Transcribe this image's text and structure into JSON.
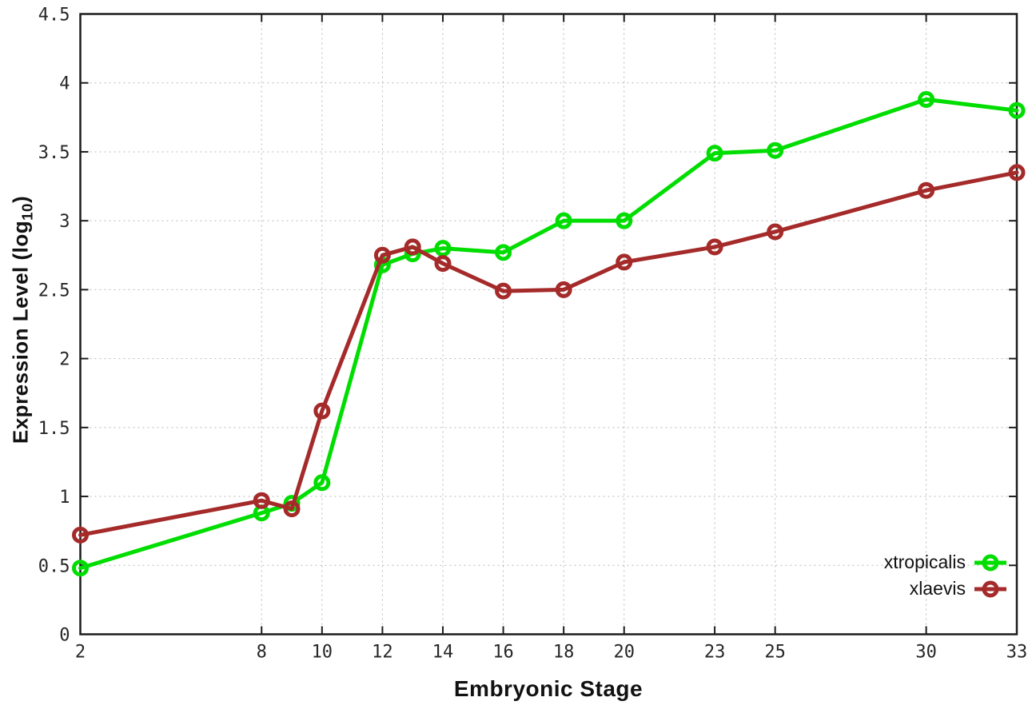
{
  "chart_data": {
    "type": "line",
    "title": "",
    "xlabel": "Embryonic Stage",
    "ylabel": {
      "prefix": "Expression Level (log",
      "sub": "10",
      "suffix": ")"
    },
    "xlim": [
      2,
      33
    ],
    "ylim": [
      0,
      4.5
    ],
    "x_ticks": [
      2,
      8,
      10,
      12,
      14,
      16,
      18,
      20,
      23,
      25,
      30,
      33
    ],
    "x_tick_labels": [
      "2",
      "8",
      "10",
      "12",
      "14",
      "16",
      "18",
      "20",
      "23",
      "25",
      "30",
      "33"
    ],
    "y_ticks": [
      0,
      0.5,
      1,
      1.5,
      2,
      2.5,
      3,
      3.5,
      4,
      4.5
    ],
    "y_tick_labels": [
      "0",
      "0.5",
      "1",
      "1.5",
      "2",
      "2.5",
      "3",
      "3.5",
      "4",
      "4.5"
    ],
    "grid": true,
    "grid_style": "dotted",
    "legend_position": "bottom-right",
    "x": [
      2,
      8,
      9,
      10,
      12,
      13,
      14,
      16,
      18,
      20,
      23,
      25,
      30,
      33
    ],
    "series": [
      {
        "name": "xtropicalis",
        "color": "#00dd00",
        "marker": "open-circle",
        "values": [
          0.48,
          0.88,
          0.95,
          1.1,
          2.68,
          2.76,
          2.8,
          2.77,
          3.0,
          3.0,
          3.49,
          3.51,
          3.88,
          3.8
        ]
      },
      {
        "name": "xlaevis",
        "color": "#a52a2a",
        "marker": "open-circle",
        "values": [
          0.72,
          0.97,
          0.91,
          1.62,
          2.75,
          2.81,
          2.69,
          2.49,
          2.5,
          2.7,
          2.81,
          2.92,
          3.22,
          3.35
        ]
      }
    ],
    "colors": {
      "axis": "#1c1c1c",
      "grid": "#b9b9b9",
      "tick_text": "#262626",
      "background": "#ffffff"
    }
  }
}
